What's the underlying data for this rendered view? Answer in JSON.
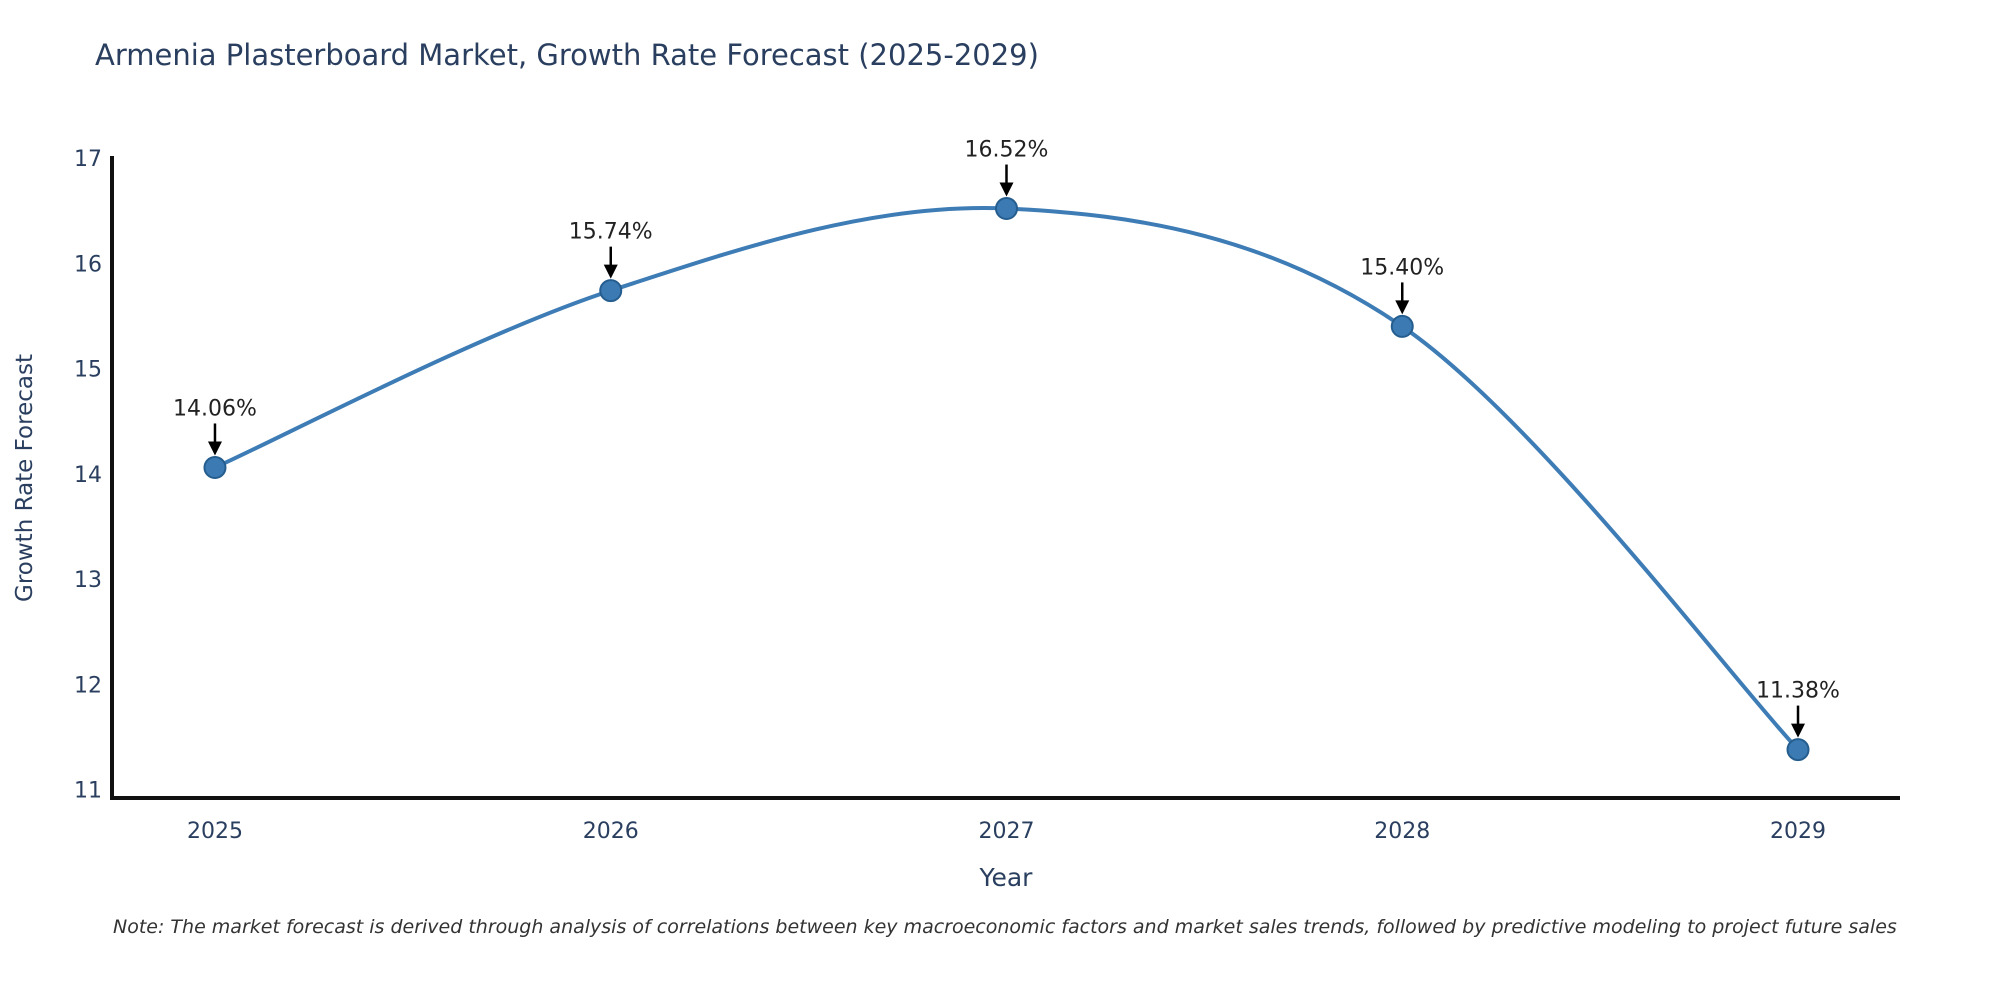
{
  "page": {
    "note": "Note: The market forecast is derived through analysis of correlations between key macroeconomic factors and market sales trends, followed by predictive modeling to project future sales"
  },
  "chart_data": {
    "type": "line",
    "title": "Armenia Plasterboard Market, Growth Rate Forecast (2025-2029)",
    "xlabel": "Year",
    "ylabel": "Growth Rate Forecast",
    "x": [
      2025,
      2026,
      2027,
      2028,
      2029
    ],
    "values": [
      14.06,
      15.74,
      16.52,
      15.4,
      11.38
    ],
    "point_labels": [
      "14.06%",
      "15.74%",
      "16.52%",
      "15.40%",
      "11.38%"
    ],
    "xticks": [
      "2025",
      "2026",
      "2027",
      "2028",
      "2029"
    ],
    "yticks": [
      11,
      12,
      13,
      14,
      15,
      16,
      17
    ],
    "xlim": [
      2024.7398,
      2029.2577
    ],
    "ylim": [
      10.92,
      17.0
    ],
    "line_shape": "spline",
    "grid": false,
    "legend": "none",
    "colors": {
      "line": "#3E7CB6",
      "marker_fill": "#3C7AB4",
      "marker_edge": "#255E8E",
      "axis_line": "#111111",
      "tick_text": "#2a3f5f",
      "axis_label_text": "#2a3f5f",
      "annotation_text": "#222222",
      "annotation_arrow": "#000000"
    }
  }
}
